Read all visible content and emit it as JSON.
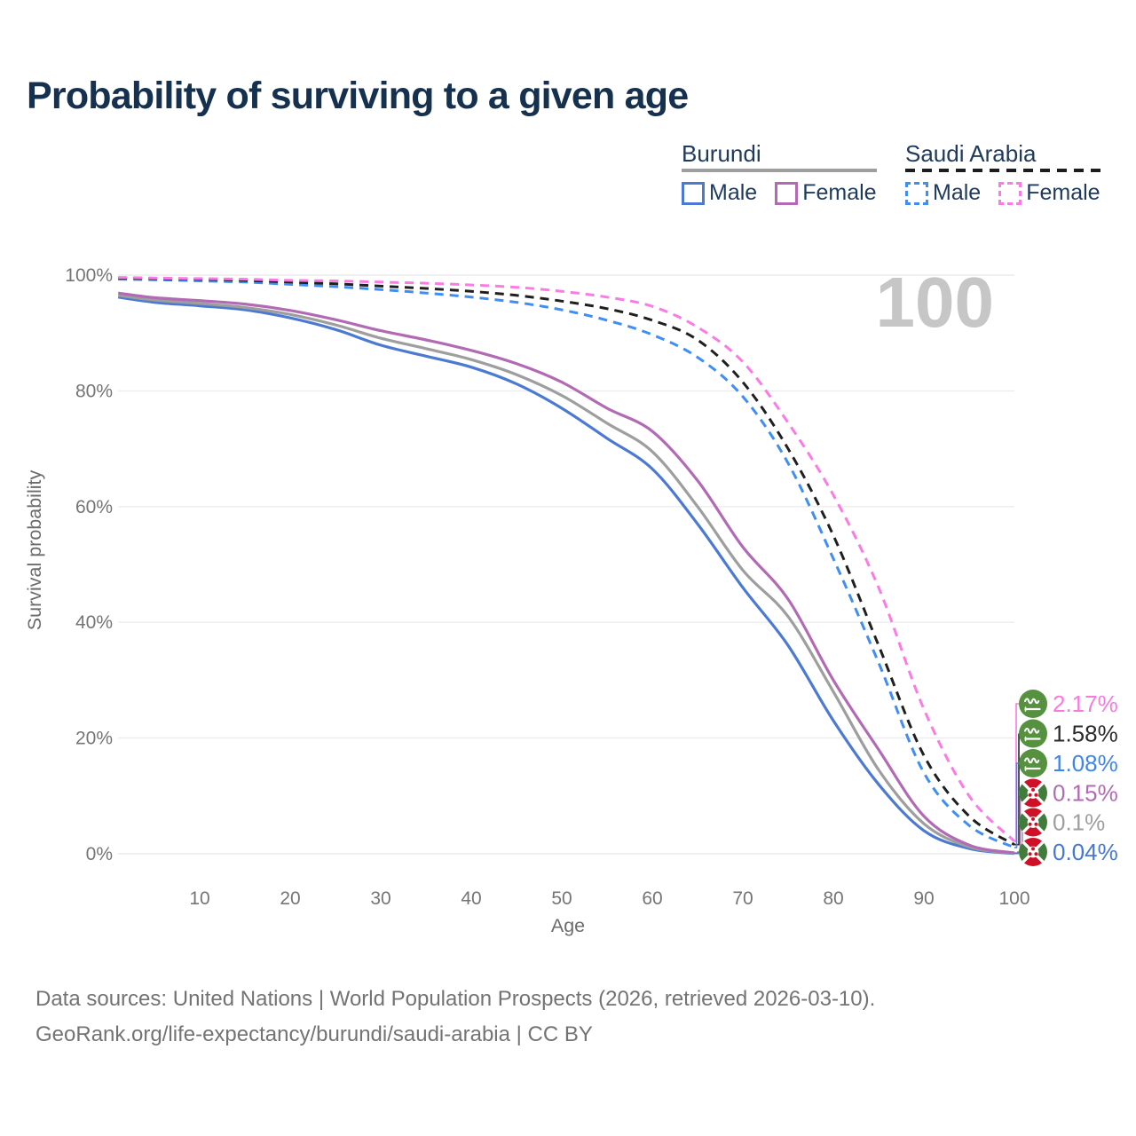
{
  "title": "Probability of surviving to a given age",
  "watermark": "100",
  "legend": {
    "groups": [
      {
        "country": "Burundi",
        "style": "solid",
        "underline_color": "#9e9e9e",
        "items": [
          {
            "label": "Male",
            "color": "#4c7ad2"
          },
          {
            "label": "Female",
            "color": "#b26ab4"
          }
        ]
      },
      {
        "country": "Saudi Arabia",
        "style": "dashed",
        "underline_color": "#1c1c1c",
        "items": [
          {
            "label": "Male",
            "color": "#3f8ef3"
          },
          {
            "label": "Female",
            "color": "#fb7ae6"
          }
        ]
      }
    ]
  },
  "chart_data": {
    "type": "line",
    "title": "Probability of surviving to a given age",
    "xlabel": "Age",
    "ylabel": "Survival probability",
    "xlim": [
      0,
      100
    ],
    "ylim": [
      0,
      100
    ],
    "grid": "horizontal",
    "legend_position": "top-right",
    "x_ticks": [
      10,
      20,
      30,
      40,
      50,
      60,
      70,
      80,
      90,
      100
    ],
    "y_tick_values": [
      0,
      20,
      40,
      60,
      80,
      100
    ],
    "y_tick_labels": [
      "0%",
      "20%",
      "40%",
      "60%",
      "80%",
      "100%"
    ],
    "ages": [
      1,
      5,
      10,
      15,
      20,
      25,
      30,
      35,
      40,
      45,
      50,
      55,
      60,
      65,
      70,
      75,
      80,
      85,
      90,
      95,
      100
    ],
    "series": [
      {
        "id": "saudi-arabia-female",
        "country": "Saudi Arabia",
        "sex": "Female",
        "color": "#fb7ae6",
        "label_color": "#f87ae0",
        "dash": true,
        "flag": "saudi-arabia",
        "end_label": "2.17%",
        "values": [
          99.6,
          99.5,
          99.4,
          99.3,
          99.1,
          99.0,
          98.8,
          98.6,
          98.3,
          97.9,
          97.2,
          96.2,
          94.6,
          91.0,
          85.0,
          74.5,
          62.0,
          46.0,
          25.0,
          10.0,
          2.17
        ]
      },
      {
        "id": "saudi-arabia-both",
        "country": "Saudi Arabia",
        "sex": "Both sexes",
        "color": "#1f1f1f",
        "label_color": "#2b2b2b",
        "dash": true,
        "flag": "saudi-arabia",
        "end_label": "1.58%",
        "values": [
          99.5,
          99.4,
          99.3,
          99.1,
          98.8,
          98.5,
          98.1,
          97.7,
          97.2,
          96.5,
          95.5,
          94.2,
          92.2,
          88.8,
          81.5,
          70.0,
          55.0,
          36.0,
          17.0,
          6.5,
          1.58
        ]
      },
      {
        "id": "saudi-arabia-male",
        "country": "Saudi Arabia",
        "sex": "Male",
        "color": "#3f8ef3",
        "label_color": "#3f86ea",
        "dash": true,
        "flag": "saudi-arabia",
        "end_label": "1.08%",
        "values": [
          99.3,
          99.2,
          99.0,
          98.8,
          98.4,
          98.0,
          97.5,
          96.9,
          96.2,
          95.3,
          94.0,
          92.2,
          89.7,
          85.8,
          79.0,
          67.5,
          51.0,
          33.0,
          14.0,
          4.9,
          1.08
        ]
      },
      {
        "id": "burundi-female",
        "country": "Burundi",
        "sex": "Female",
        "color": "#b26ab4",
        "label_color": "#b26ab4",
        "dash": false,
        "flag": "burundi",
        "end_label": "0.15%",
        "values": [
          96.9,
          96.1,
          95.6,
          95.0,
          93.9,
          92.3,
          90.4,
          88.8,
          87.0,
          84.7,
          81.5,
          77.0,
          73.0,
          64.5,
          53.0,
          44.0,
          30.0,
          18.0,
          6.5,
          1.5,
          0.15
        ]
      },
      {
        "id": "burundi-both",
        "country": "Burundi",
        "sex": "Both sexes",
        "color": "#9e9e9e",
        "label_color": "#9e9e9e",
        "dash": false,
        "flag": "burundi",
        "end_label": "0.1%",
        "values": [
          96.5,
          95.7,
          95.1,
          94.4,
          93.2,
          91.4,
          89.1,
          87.3,
          85.4,
          82.8,
          79.2,
          74.4,
          69.5,
          60.0,
          49.0,
          41.0,
          28.0,
          14.5,
          5.2,
          1.2,
          0.1
        ]
      },
      {
        "id": "burundi-male",
        "country": "Burundi",
        "sex": "Male",
        "color": "#4c7ad2",
        "label_color": "#4677d6",
        "dash": false,
        "flag": "burundi",
        "end_label": "0.04%",
        "values": [
          96.2,
          95.3,
          94.7,
          94.0,
          92.6,
          90.6,
          87.9,
          86.0,
          84.1,
          81.2,
          77.0,
          71.8,
          66.5,
          57.0,
          46.0,
          36.0,
          23.0,
          12.0,
          4.0,
          0.9,
          0.04
        ]
      }
    ]
  },
  "footer": {
    "line1": "Data sources: United Nations | World Population Prospects (2026, retrieved 2026-03-10).",
    "line2": "GeoRank.org/life-expectancy/burundi/saudi-arabia | CC BY"
  }
}
